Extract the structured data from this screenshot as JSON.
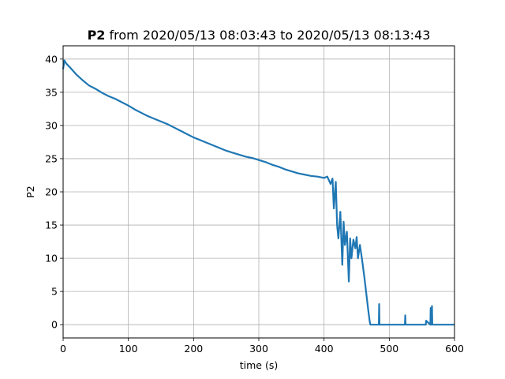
{
  "chart_data": {
    "type": "line",
    "title_bold": "P2",
    "title_rest": " from 2020/05/13 08:03:43 to 2020/05/13 08:13:43",
    "xlabel": "time (s)",
    "ylabel": "P2",
    "xlim": [
      0,
      600
    ],
    "ylim": [
      -2,
      42
    ],
    "xticks": [
      0,
      100,
      200,
      300,
      400,
      500,
      600
    ],
    "yticks": [
      0,
      5,
      10,
      15,
      20,
      25,
      30,
      35,
      40
    ],
    "grid": true,
    "series_color": "#1f77b4",
    "series": [
      {
        "x": [
          0,
          2,
          5,
          10,
          20,
          30,
          40,
          50,
          60,
          70,
          80,
          90,
          100,
          110,
          120,
          130,
          140,
          150,
          160,
          170,
          180,
          190,
          200,
          210,
          220,
          230,
          240,
          250,
          260,
          270,
          280,
          290,
          300,
          310,
          320,
          330,
          340,
          350,
          360,
          370,
          380,
          390,
          400,
          405,
          410,
          413,
          415,
          418,
          420,
          422,
          425,
          428,
          430,
          432,
          435,
          438,
          440,
          442,
          445,
          448,
          450,
          452,
          455,
          458,
          460,
          462,
          465,
          468,
          470,
          471,
          480,
          484,
          484.5,
          485,
          500,
          524,
          524.5,
          525,
          555,
          556,
          556.5,
          563,
          563.5,
          564,
          565,
          565.5,
          566,
          600
        ],
        "y": [
          38.5,
          39.8,
          39.3,
          38.8,
          37.7,
          36.8,
          36.0,
          35.5,
          34.9,
          34.4,
          34.0,
          33.5,
          33.0,
          32.4,
          31.9,
          31.4,
          31.0,
          30.6,
          30.2,
          29.7,
          29.2,
          28.7,
          28.2,
          27.8,
          27.4,
          27.0,
          26.6,
          26.2,
          25.9,
          25.6,
          25.3,
          25.1,
          24.8,
          24.5,
          24.1,
          23.8,
          23.4,
          23.1,
          22.8,
          22.6,
          22.4,
          22.3,
          22.1,
          22.3,
          21.2,
          22.0,
          17.5,
          21.5,
          15.0,
          13.0,
          17.0,
          9.0,
          15.5,
          12.0,
          14.0,
          6.5,
          13.0,
          10.0,
          12.8,
          11.5,
          13.2,
          10.0,
          12.0,
          10.0,
          8.5,
          7.0,
          4.5,
          2.0,
          0.5,
          0.0,
          0.0,
          0.0,
          3.1,
          0.0,
          0.0,
          0.0,
          1.4,
          0.0,
          0.0,
          0.0,
          0.6,
          0.0,
          2.5,
          0.0,
          0.0,
          2.8,
          0.0,
          0.0
        ]
      }
    ]
  }
}
